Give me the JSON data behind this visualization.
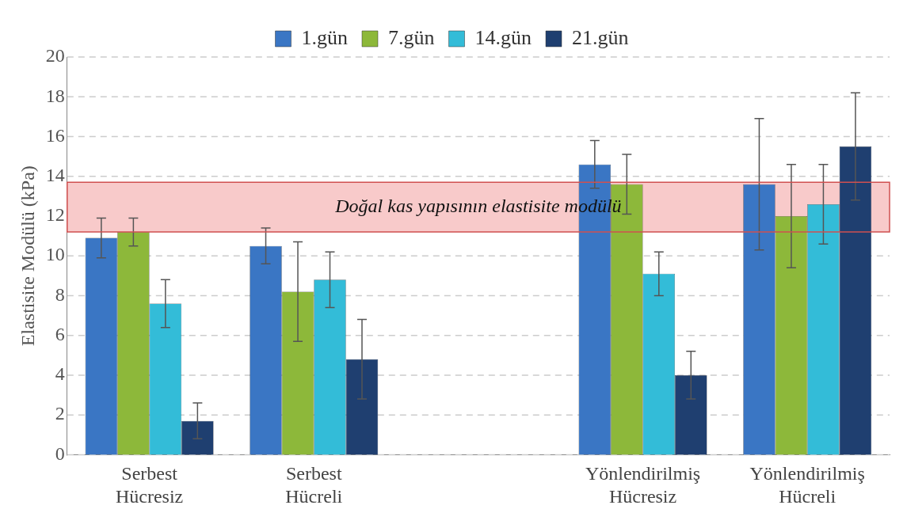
{
  "chart_data": {
    "type": "bar",
    "ylabel": "Elastisite Modülü (kPa)",
    "categories": [
      "Serbest Hücresiz",
      "Serbest Hücreli",
      null,
      "Yönlendirilmiş Hücresiz",
      "Yönlendirilmiş Hücreli"
    ],
    "series": [
      {
        "name": "1.gün",
        "color": "#3a76c4",
        "values": [
          10.9,
          10.5,
          null,
          14.6,
          13.6
        ],
        "errors": [
          1.0,
          0.9,
          null,
          1.2,
          3.3
        ]
      },
      {
        "name": "7.gün",
        "color": "#8db83a",
        "values": [
          11.2,
          8.2,
          null,
          13.6,
          12.0
        ],
        "errors": [
          0.7,
          2.5,
          null,
          1.5,
          2.6
        ]
      },
      {
        "name": "14.gün",
        "color": "#33bcd8",
        "values": [
          7.6,
          8.8,
          null,
          9.1,
          12.6
        ],
        "errors": [
          1.2,
          1.4,
          null,
          1.1,
          2.0
        ]
      },
      {
        "name": "21.gün",
        "color": "#1f3f70",
        "values": [
          1.7,
          4.8,
          null,
          4.0,
          15.5
        ],
        "errors": [
          0.9,
          2.0,
          null,
          1.2,
          2.7
        ]
      }
    ],
    "ylim": [
      0,
      20
    ],
    "yticks": [
      0,
      2,
      4,
      6,
      8,
      10,
      12,
      14,
      16,
      18,
      20
    ],
    "bands": [
      {
        "axis": "y",
        "from": 11.2,
        "to": 13.7,
        "label": "Doğal kas yapısının elastisite modülü",
        "color": "#f8caca"
      }
    ],
    "grid": "y",
    "legend": "top"
  }
}
